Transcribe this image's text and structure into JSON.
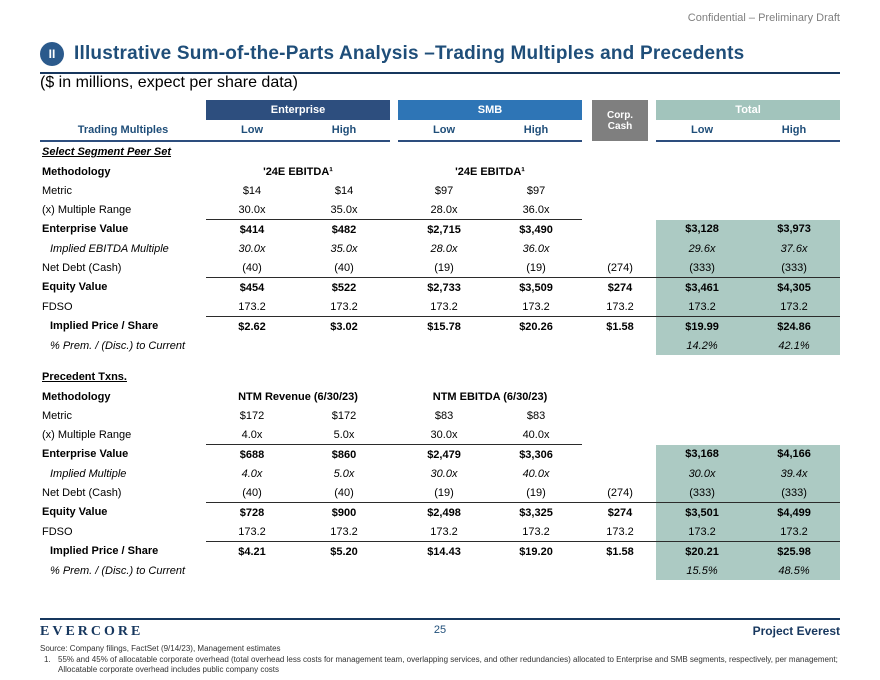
{
  "page": {
    "confidential": "Confidential – Preliminary Draft",
    "badge": "II",
    "title": "Illustrative Sum-of-the-Parts Analysis –Trading Multiples and Precedents",
    "units_note": "($ in millions, expect per share data)"
  },
  "colors": {
    "accent_navy": "#17375E",
    "title_blue": "#1F4E79",
    "enterprise_bar": "#2D4E7E",
    "smb_bar": "#2E75B6",
    "corp_bar": "#7F7F7F",
    "total_bar": "#A2C4BC",
    "total_highlight": "#ACCAC3"
  },
  "table": {
    "left_header": "Trading Multiples",
    "groups": [
      {
        "label": "Enterprise"
      },
      {
        "label": "SMB"
      },
      {
        "line1": "Corp.",
        "line2": "Cash"
      },
      {
        "label": "Total"
      }
    ],
    "sub": {
      "low": "Low",
      "high": "High"
    },
    "rows": [
      {
        "type": "section",
        "label": "Select Segment Peer Set",
        "ital": true
      },
      {
        "type": "span",
        "label": "Methodology",
        "lb": true,
        "values": [
          "'24E EBITDA¹",
          "'24E EBITDA¹"
        ]
      },
      {
        "type": "data",
        "label": "Metric",
        "cells": [
          "$14",
          "$14",
          "$97",
          "$97",
          "",
          "",
          ""
        ]
      },
      {
        "type": "data",
        "label": "(x) Multiple Range",
        "cells": [
          "30.0x",
          "35.0x",
          "28.0x",
          "36.0x",
          "",
          "",
          ""
        ]
      },
      {
        "type": "data",
        "label": "Enterprise Value",
        "lb": true,
        "bold": true,
        "hl": true,
        "border": [
          0,
          1,
          2,
          3
        ],
        "cells": [
          "$414",
          "$482",
          "$2,715",
          "$3,490",
          "",
          "$3,128",
          "$3,973"
        ]
      },
      {
        "type": "data",
        "label": "Implied EBITDA Multiple",
        "li": true,
        "ind": true,
        "ital": true,
        "hl": true,
        "cells": [
          "30.0x",
          "35.0x",
          "28.0x",
          "36.0x",
          "",
          "29.6x",
          "37.6x"
        ]
      },
      {
        "type": "data",
        "label": "Net Debt (Cash)",
        "hl": true,
        "cells": [
          "(40)",
          "(40)",
          "(19)",
          "(19)",
          "(274)",
          "(333)",
          "(333)"
        ]
      },
      {
        "type": "data",
        "label": "Equity Value",
        "lb": true,
        "bold": true,
        "hl": true,
        "border": [
          0,
          1,
          2,
          3,
          4,
          5,
          6
        ],
        "cells": [
          "$454",
          "$522",
          "$2,733",
          "$3,509",
          "$274",
          "$3,461",
          "$4,305"
        ]
      },
      {
        "type": "data",
        "label": "FDSO",
        "hl": true,
        "cells": [
          "173.2",
          "173.2",
          "173.2",
          "173.2",
          "173.2",
          "173.2",
          "173.2"
        ]
      },
      {
        "type": "data",
        "label": "Implied Price / Share",
        "lb": true,
        "ind": true,
        "bold": true,
        "hl": true,
        "border": [
          0,
          1,
          2,
          3,
          4,
          5,
          6
        ],
        "cells": [
          "$2.62",
          "$3.02",
          "$15.78",
          "$20.26",
          "$1.58",
          "$19.99",
          "$24.86"
        ]
      },
      {
        "type": "data",
        "label": "% Prem. / (Disc.) to Current",
        "li": true,
        "ind": true,
        "ital": true,
        "hl": true,
        "cells": [
          "",
          "",
          "",
          "",
          "",
          "14.2%",
          "42.1%"
        ]
      },
      {
        "type": "spacer"
      },
      {
        "type": "section",
        "label": "Precedent Txns.",
        "ital": false
      },
      {
        "type": "span",
        "label": "Methodology",
        "lb": true,
        "values": [
          "NTM Revenue (6/30/23)",
          "NTM EBITDA (6/30/23)"
        ]
      },
      {
        "type": "data",
        "label": "Metric",
        "cells": [
          "$172",
          "$172",
          "$83",
          "$83",
          "",
          "",
          ""
        ]
      },
      {
        "type": "data",
        "label": "(x) Multiple Range",
        "cells": [
          "4.0x",
          "5.0x",
          "30.0x",
          "40.0x",
          "",
          "",
          ""
        ]
      },
      {
        "type": "data",
        "label": "Enterprise Value",
        "lb": true,
        "bold": true,
        "hl": true,
        "border": [
          0,
          1,
          2,
          3
        ],
        "cells": [
          "$688",
          "$860",
          "$2,479",
          "$3,306",
          "",
          "$3,168",
          "$4,166"
        ]
      },
      {
        "type": "data",
        "label": "Implied Multiple",
        "li": true,
        "ind": true,
        "ital": true,
        "hl": true,
        "cells": [
          "4.0x",
          "5.0x",
          "30.0x",
          "40.0x",
          "",
          "30.0x",
          "39.4x"
        ]
      },
      {
        "type": "data",
        "label": "Net Debt (Cash)",
        "hl": true,
        "cells": [
          "(40)",
          "(40)",
          "(19)",
          "(19)",
          "(274)",
          "(333)",
          "(333)"
        ]
      },
      {
        "type": "data",
        "label": "Equity Value",
        "lb": true,
        "bold": true,
        "hl": true,
        "border": [
          0,
          1,
          2,
          3,
          4,
          5,
          6
        ],
        "cells": [
          "$728",
          "$900",
          "$2,498",
          "$3,325",
          "$274",
          "$3,501",
          "$4,499"
        ]
      },
      {
        "type": "data",
        "label": "FDSO",
        "hl": true,
        "cells": [
          "173.2",
          "173.2",
          "173.2",
          "173.2",
          "173.2",
          "173.2",
          "173.2"
        ]
      },
      {
        "type": "data",
        "label": "Implied Price / Share",
        "lb": true,
        "ind": true,
        "bold": true,
        "hl": true,
        "border": [
          0,
          1,
          2,
          3,
          4,
          5,
          6
        ],
        "cells": [
          "$4.21",
          "$5.20",
          "$14.43",
          "$19.20",
          "$1.58",
          "$20.21",
          "$25.98"
        ]
      },
      {
        "type": "data",
        "label": "% Prem. / (Disc.) to Current",
        "li": true,
        "ind": true,
        "ital": true,
        "hl": true,
        "cells": [
          "",
          "",
          "",
          "",
          "",
          "15.5%",
          "48.5%"
        ]
      }
    ]
  },
  "footer": {
    "logo": "EVERCORE",
    "page_number": "25",
    "project": "Project Everest",
    "source": "Source: Company filings, FactSet (9/14/23), Management estimates",
    "footnote_number": "1.",
    "footnote_line1": "55% and 45% of allocatable corporate overhead (total overhead less costs for management team, overlapping services, and other redundancies) allocated to Enterprise and SMB segments, respectively, per management;",
    "footnote_line2": "Allocatable corporate overhead includes public company costs"
  }
}
